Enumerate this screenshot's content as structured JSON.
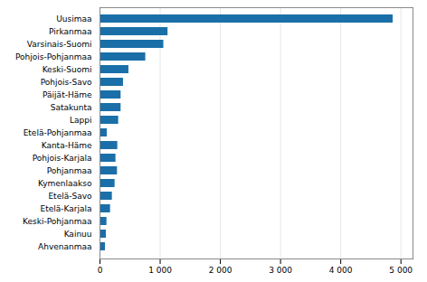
{
  "chart_data": {
    "type": "bar",
    "orientation": "horizontal",
    "categories": [
      "Ahvenanmaa",
      "Kainuu",
      "Keski-Pohjanmaa",
      "Etelä-Karjala",
      "Etelä-Savo",
      "Kymenlaakso",
      "Pohjanmaa",
      "Pohjois-Karjala",
      "Kanta-Häme",
      "Etelä-Pohjanmaa",
      "Lappi",
      "Satakunta",
      "Päijät-Häme",
      "Pohjois-Savo",
      "Keski-Suomi",
      "Pohjois-Pohjanmaa",
      "Varsinais-Suomi",
      "Pirkanmaa",
      "Uusimaa"
    ],
    "values": [
      90,
      105,
      115,
      175,
      205,
      250,
      290,
      265,
      295,
      120,
      310,
      350,
      350,
      390,
      480,
      760,
      1060,
      1130,
      4870
    ],
    "color": "#1a6fa8",
    "xlim": [
      0,
      5200
    ],
    "xticks": [
      0,
      {
        "value": 1000,
        "label": "1 000"
      },
      {
        "value": 2000,
        "label": "2 000"
      },
      {
        "value": 3000,
        "label": "3 000"
      },
      {
        "value": 4000,
        "label": "4 000"
      },
      {
        "value": 5000,
        "label": "5 000"
      }
    ],
    "grid": true
  }
}
